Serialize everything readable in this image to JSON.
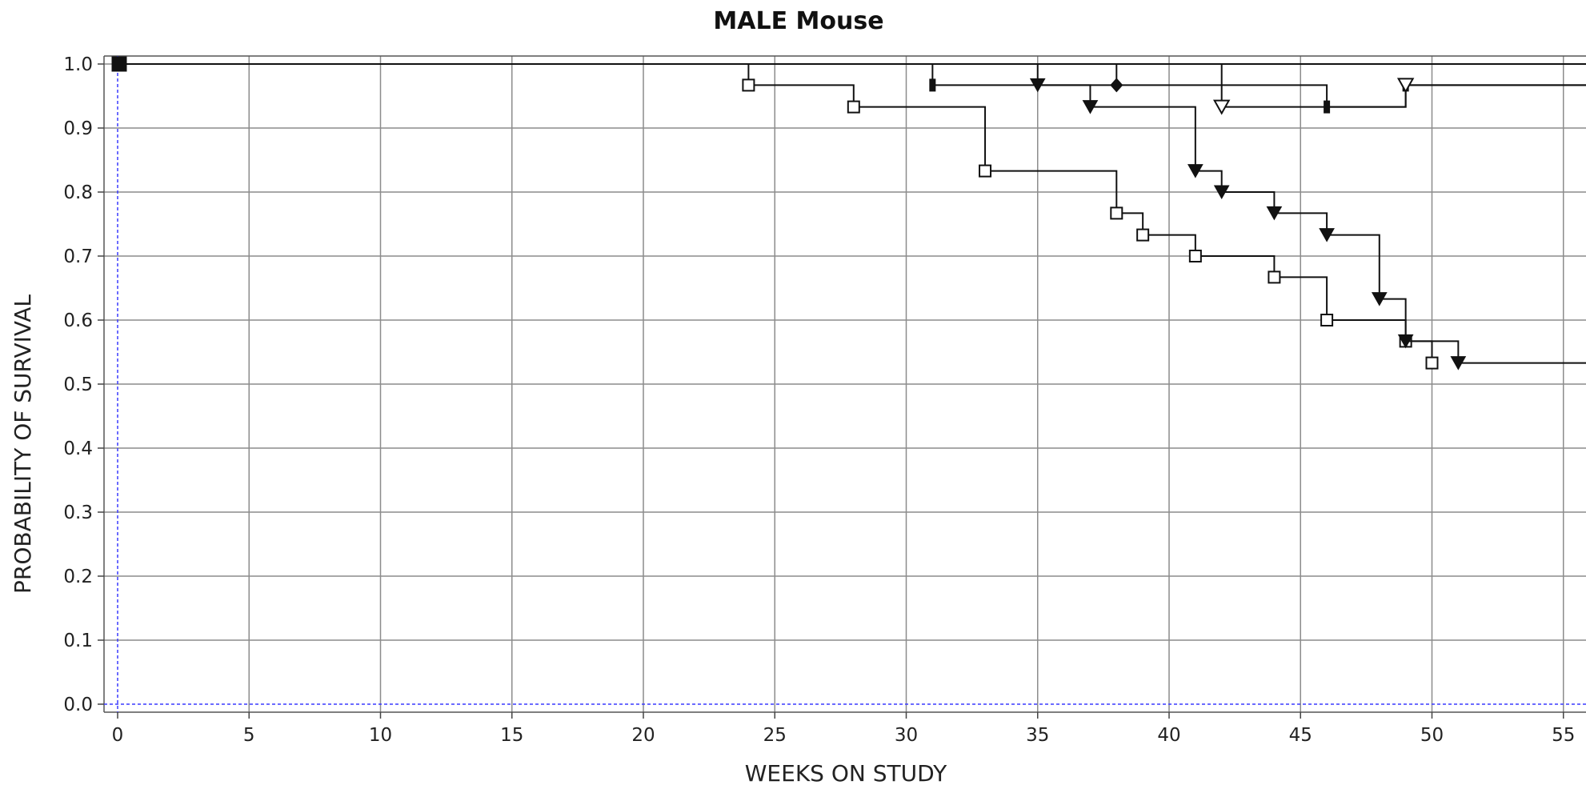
{
  "chart_data": {
    "type": "line",
    "title": "MALE Mouse",
    "xlabel": "WEEKS ON STUDY",
    "ylabel": "PROBABILITY OF SURVIVAL",
    "xlim": [
      0,
      56
    ],
    "ylim": [
      0,
      1
    ],
    "x_ticks": [
      0,
      5,
      10,
      15,
      20,
      25,
      30,
      35,
      40,
      45,
      50,
      55
    ],
    "y_ticks": [
      "0.0",
      "0.1",
      "0.2",
      "0.3",
      "0.4",
      "0.5",
      "0.6",
      "0.7",
      "0.8",
      "0.9",
      "1.0"
    ],
    "grid": true,
    "series": [
      {
        "marker": "open-square",
        "points": [
          [
            0,
            1.0
          ],
          [
            24,
            0.967
          ],
          [
            28,
            0.933
          ],
          [
            33,
            0.833
          ],
          [
            38,
            0.767
          ],
          [
            39,
            0.733
          ],
          [
            41,
            0.7
          ],
          [
            44,
            0.667
          ],
          [
            46,
            0.6
          ],
          [
            49,
            0.567
          ],
          [
            50,
            0.533
          ]
        ]
      },
      {
        "marker": "filled-triangle-down",
        "points": [
          [
            0,
            1.0
          ],
          [
            35,
            0.967
          ],
          [
            37,
            0.933
          ],
          [
            41,
            0.833
          ],
          [
            42,
            0.8
          ],
          [
            44,
            0.767
          ],
          [
            46,
            0.733
          ],
          [
            48,
            0.633
          ],
          [
            49,
            0.567
          ],
          [
            51,
            0.533
          ]
        ],
        "end_x": 56
      },
      {
        "marker": "filled-bar",
        "points": [
          [
            0,
            1.0
          ],
          [
            31,
            0.967
          ],
          [
            46,
            0.933
          ],
          [
            49,
            0.967
          ]
        ],
        "end_x": 56
      },
      {
        "marker": "open-triangle-down",
        "points": [
          [
            0,
            1.0
          ],
          [
            42,
            0.933
          ],
          [
            49,
            0.967
          ]
        ],
        "end_x": 56
      },
      {
        "marker": "filled-diamond",
        "points": [
          [
            0,
            1.0
          ],
          [
            38,
            0.967
          ]
        ]
      },
      {
        "marker": "filled-square",
        "points": [
          [
            0,
            1.0
          ]
        ],
        "end_x": 56
      }
    ]
  }
}
